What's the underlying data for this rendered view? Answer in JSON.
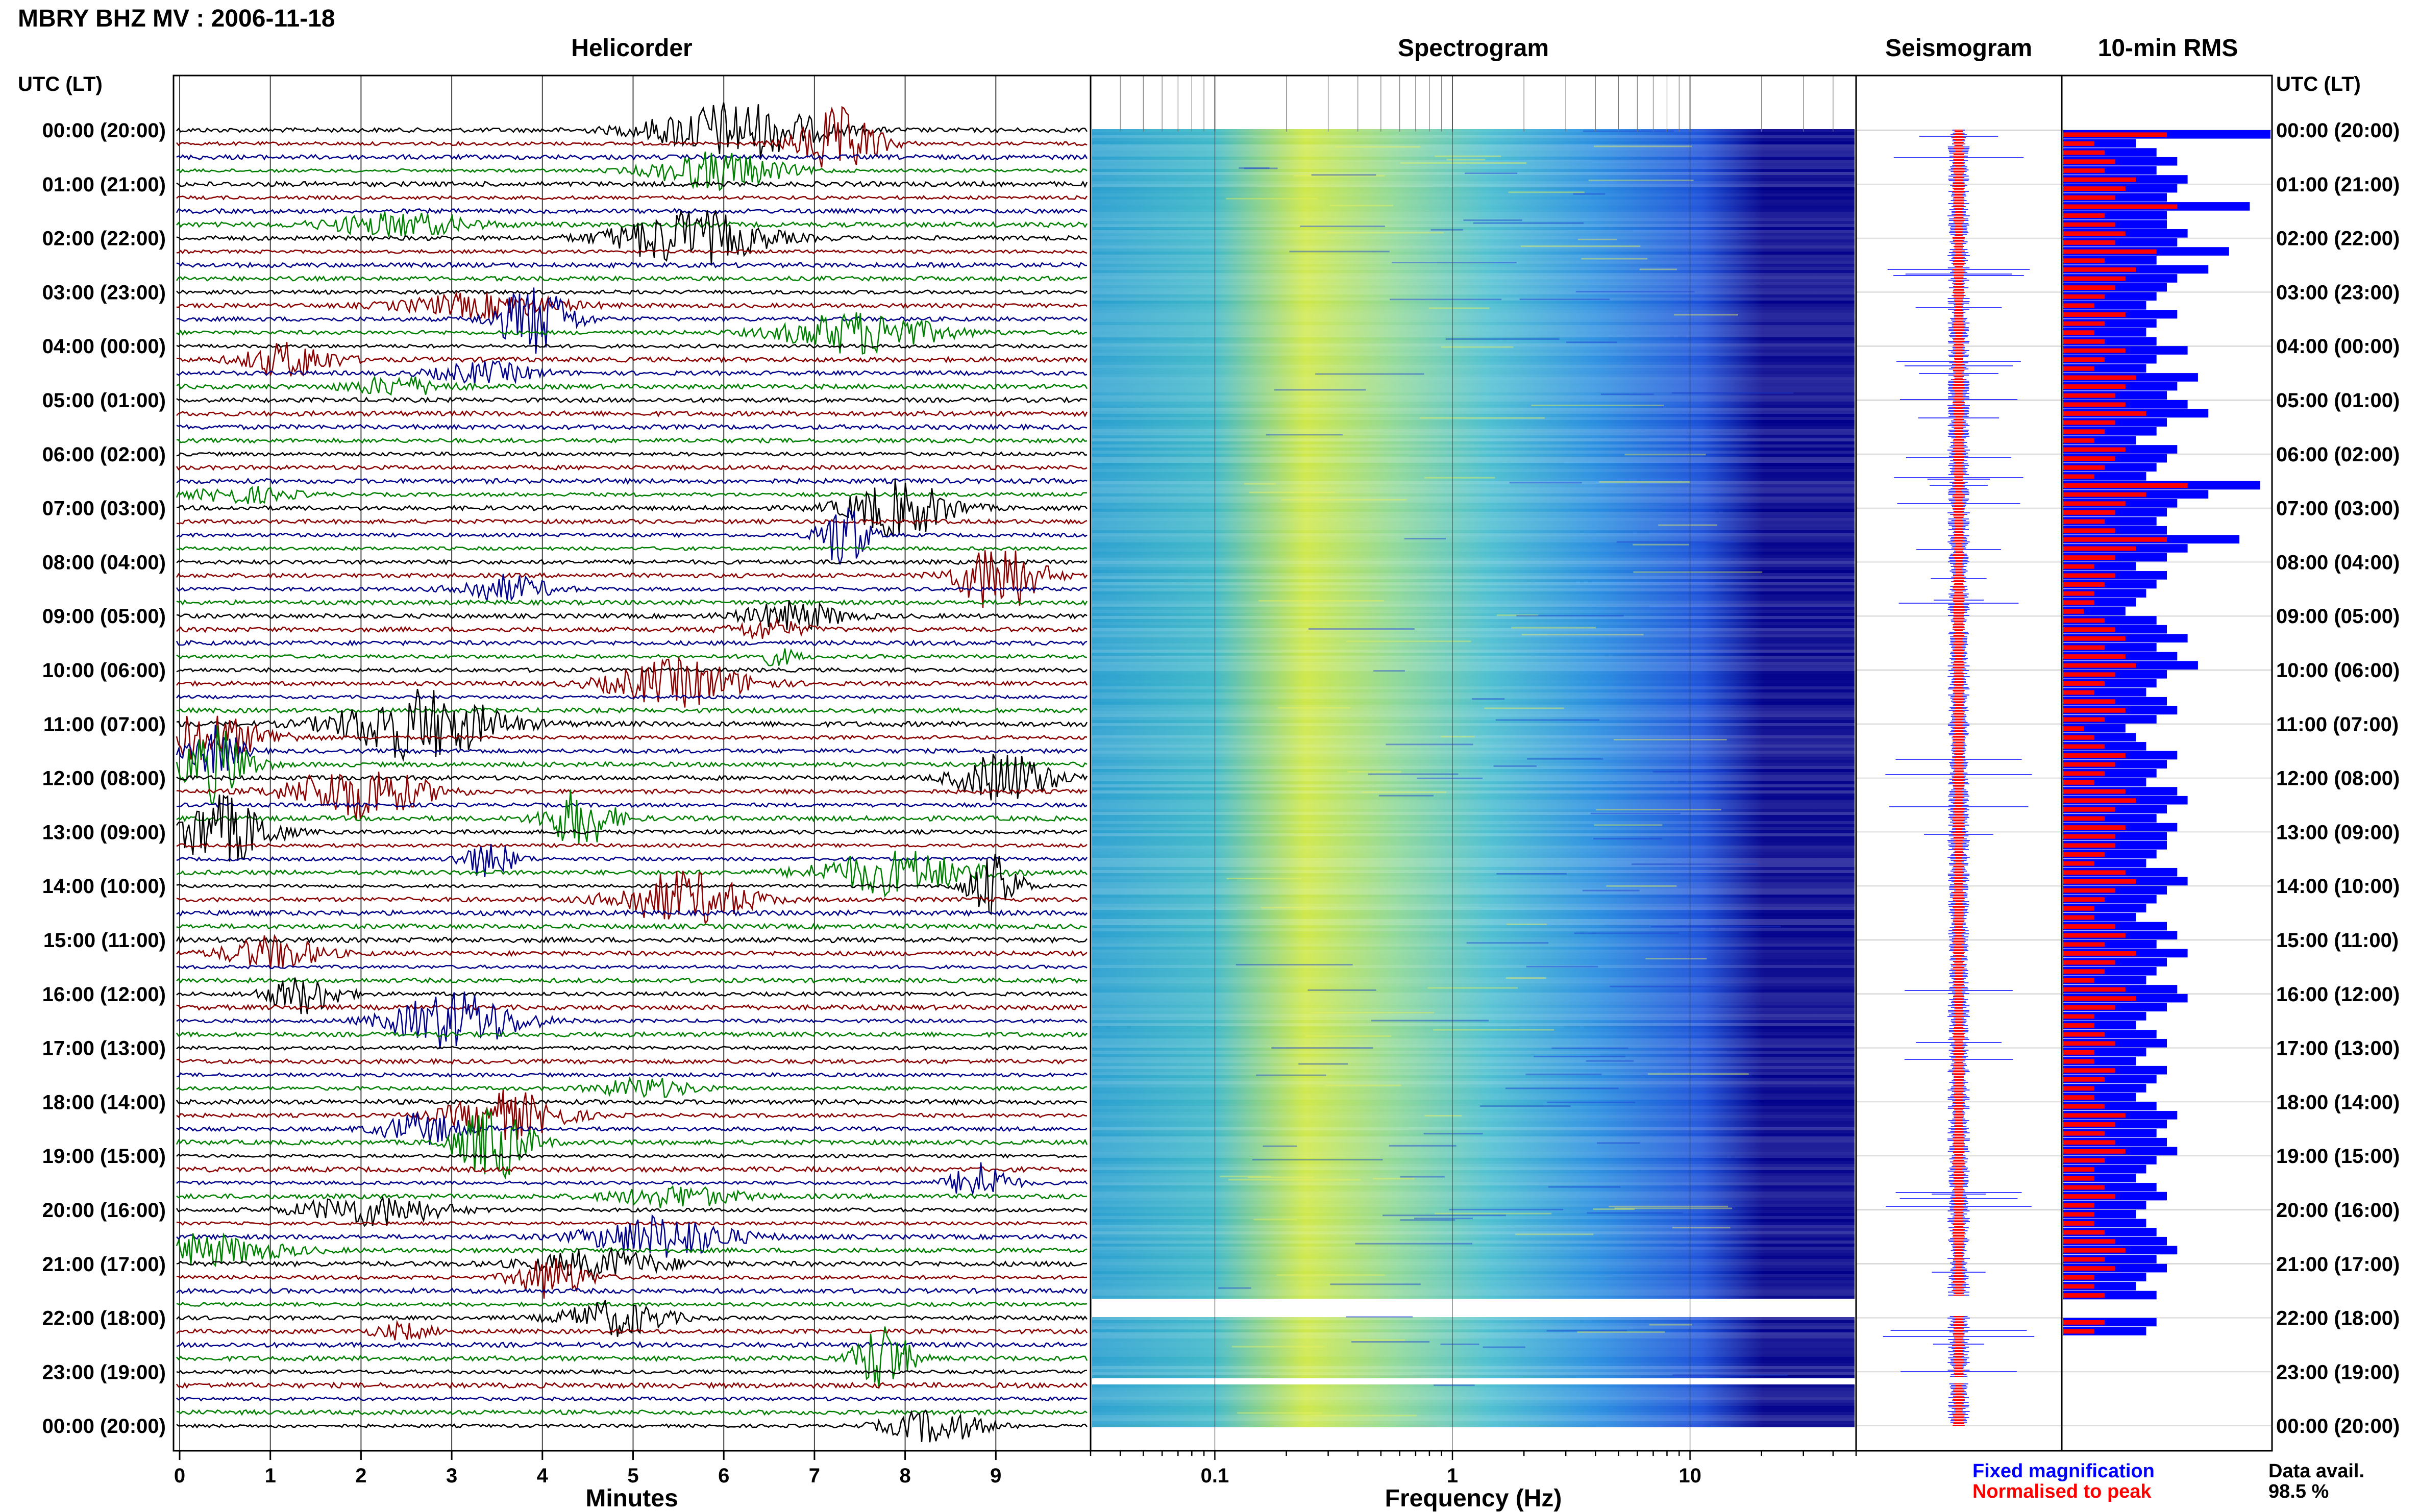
{
  "title": "MBRY BHZ MV : 2006-11-18",
  "time_axis_label_left": "UTC (LT)",
  "time_axis_label_right": "UTC (LT)",
  "panels": {
    "helicorder": "Helicorder",
    "spectrogram": "Spectrogram",
    "seismogram": "Seismogram",
    "rms": "10-min RMS"
  },
  "helicorder_xlabel": "Minutes",
  "spectrogram_xlabel": "Frequency (Hz)",
  "legend": {
    "fixed": "Fixed magnification",
    "normalised": "Normalised to peak"
  },
  "data_avail": {
    "label": "Data avail.",
    "value": "98.5 %"
  },
  "colors": {
    "trace_black": "#000000",
    "trace_red": "#8b0000",
    "trace_blue": "#00008b",
    "trace_green": "#008000",
    "fixed_magnification": "#0000ff",
    "normalised_to_peak": "#ff0000",
    "spectrogram_low": "#00008b",
    "spectrogram_mid": "#40c8c8",
    "spectrogram_high": "#f0f040"
  },
  "chart_data": {
    "type": "heatmap",
    "time_ticks": [
      "00:00 (20:00)",
      "01:00 (21:00)",
      "02:00 (22:00)",
      "03:00 (23:00)",
      "04:00 (00:00)",
      "05:00 (01:00)",
      "06:00 (02:00)",
      "07:00 (03:00)",
      "08:00 (04:00)",
      "09:00 (05:00)",
      "10:00 (06:00)",
      "11:00 (07:00)",
      "12:00 (08:00)",
      "13:00 (09:00)",
      "14:00 (10:00)",
      "15:00 (11:00)",
      "16:00 (12:00)",
      "17:00 (13:00)",
      "18:00 (14:00)",
      "19:00 (15:00)",
      "20:00 (16:00)",
      "21:00 (17:00)",
      "22:00 (18:00)",
      "23:00 (19:00)",
      "00:00 (20:00)"
    ],
    "helicorder_x_ticks": [
      "0",
      "1",
      "2",
      "3",
      "4",
      "5",
      "6",
      "7",
      "8",
      "9"
    ],
    "helicorder_xlim": [
      0,
      10
    ],
    "spectrogram_x_ticks": [
      "0.1",
      "1",
      "10"
    ],
    "spectrogram_xlim": [
      0.03,
      50
    ],
    "spectrogram_xscale": "log",
    "data_gap_utc": [
      [
        21.6,
        21.95
      ],
      [
        23.1,
        23.2
      ]
    ],
    "rms_fixed": [
      1.0,
      0.35,
      0.45,
      0.55,
      0.45,
      0.6,
      0.55,
      0.5,
      0.9,
      0.5,
      0.5,
      0.6,
      0.55,
      0.8,
      0.45,
      0.7,
      0.55,
      0.5,
      0.45,
      0.4,
      0.55,
      0.45,
      0.4,
      0.45,
      0.6,
      0.45,
      0.4,
      0.65,
      0.55,
      0.5,
      0.6,
      0.7,
      0.5,
      0.45,
      0.35,
      0.55,
      0.5,
      0.45,
      0.4,
      0.95,
      0.7,
      0.55,
      0.5,
      0.45,
      0.5,
      0.85,
      0.6,
      0.5,
      0.35,
      0.5,
      0.45,
      0.4,
      0.35,
      0.3,
      0.45,
      0.5,
      0.6,
      0.45,
      0.55,
      0.65,
      0.5,
      0.45,
      0.4,
      0.5,
      0.55,
      0.45,
      0.3,
      0.35,
      0.4,
      0.55,
      0.5,
      0.45,
      0.4,
      0.55,
      0.6,
      0.5,
      0.45,
      0.55,
      0.5,
      0.5,
      0.45,
      0.4,
      0.55,
      0.6,
      0.5,
      0.45,
      0.4,
      0.35,
      0.5,
      0.55,
      0.45,
      0.6,
      0.5,
      0.45,
      0.4,
      0.55,
      0.6,
      0.5,
      0.4,
      0.35,
      0.45,
      0.5,
      0.4,
      0.35,
      0.5,
      0.45,
      0.4,
      0.35,
      0.45,
      0.55,
      0.5,
      0.45,
      0.5,
      0.55,
      0.45,
      0.4,
      0.35,
      0.45,
      0.5,
      0.4,
      0.35,
      0.4,
      0.45,
      0.5,
      0.55,
      0.45,
      0.5,
      0.4,
      0.35,
      0.45,
      0.55,
      0.5,
      0.45,
      0.4
    ],
    "rms_normalised": [
      0.5,
      0.15,
      0.2,
      0.25,
      0.2,
      0.35,
      0.3,
      0.25,
      0.55,
      0.2,
      0.25,
      0.3,
      0.25,
      0.45,
      0.2,
      0.35,
      0.3,
      0.25,
      0.2,
      0.15,
      0.3,
      0.2,
      0.15,
      0.2,
      0.3,
      0.2,
      0.15,
      0.35,
      0.3,
      0.25,
      0.3,
      0.4,
      0.25,
      0.2,
      0.15,
      0.3,
      0.25,
      0.2,
      0.15,
      0.6,
      0.4,
      0.3,
      0.25,
      0.2,
      0.25,
      0.5,
      0.35,
      0.25,
      0.15,
      0.25,
      0.2,
      0.15,
      0.15,
      0.1,
      0.2,
      0.25,
      0.3,
      0.2,
      0.3,
      0.35,
      0.25,
      0.2,
      0.15,
      0.25,
      0.3,
      0.2,
      0.1,
      0.15,
      0.2,
      0.3,
      0.25,
      0.2,
      0.15,
      0.3,
      0.35,
      0.25,
      0.2,
      0.3,
      0.25,
      0.25,
      0.2,
      0.15,
      0.3,
      0.35,
      0.25,
      0.2,
      0.15,
      0.15,
      0.25,
      0.3,
      0.2,
      0.35,
      0.25,
      0.2,
      0.15,
      0.3,
      0.35,
      0.25,
      0.15,
      0.15,
      0.2,
      0.25,
      0.15,
      0.15,
      0.25,
      0.2,
      0.15,
      0.15,
      0.2,
      0.3,
      0.25,
      0.2,
      0.25,
      0.3,
      0.2,
      0.15,
      0.15,
      0.2,
      0.25,
      0.15,
      0.15,
      0.15,
      0.2,
      0.25,
      0.3,
      0.2,
      0.25,
      0.15,
      0.15,
      0.2,
      0.3,
      0.25,
      0.2,
      0.15
    ]
  }
}
